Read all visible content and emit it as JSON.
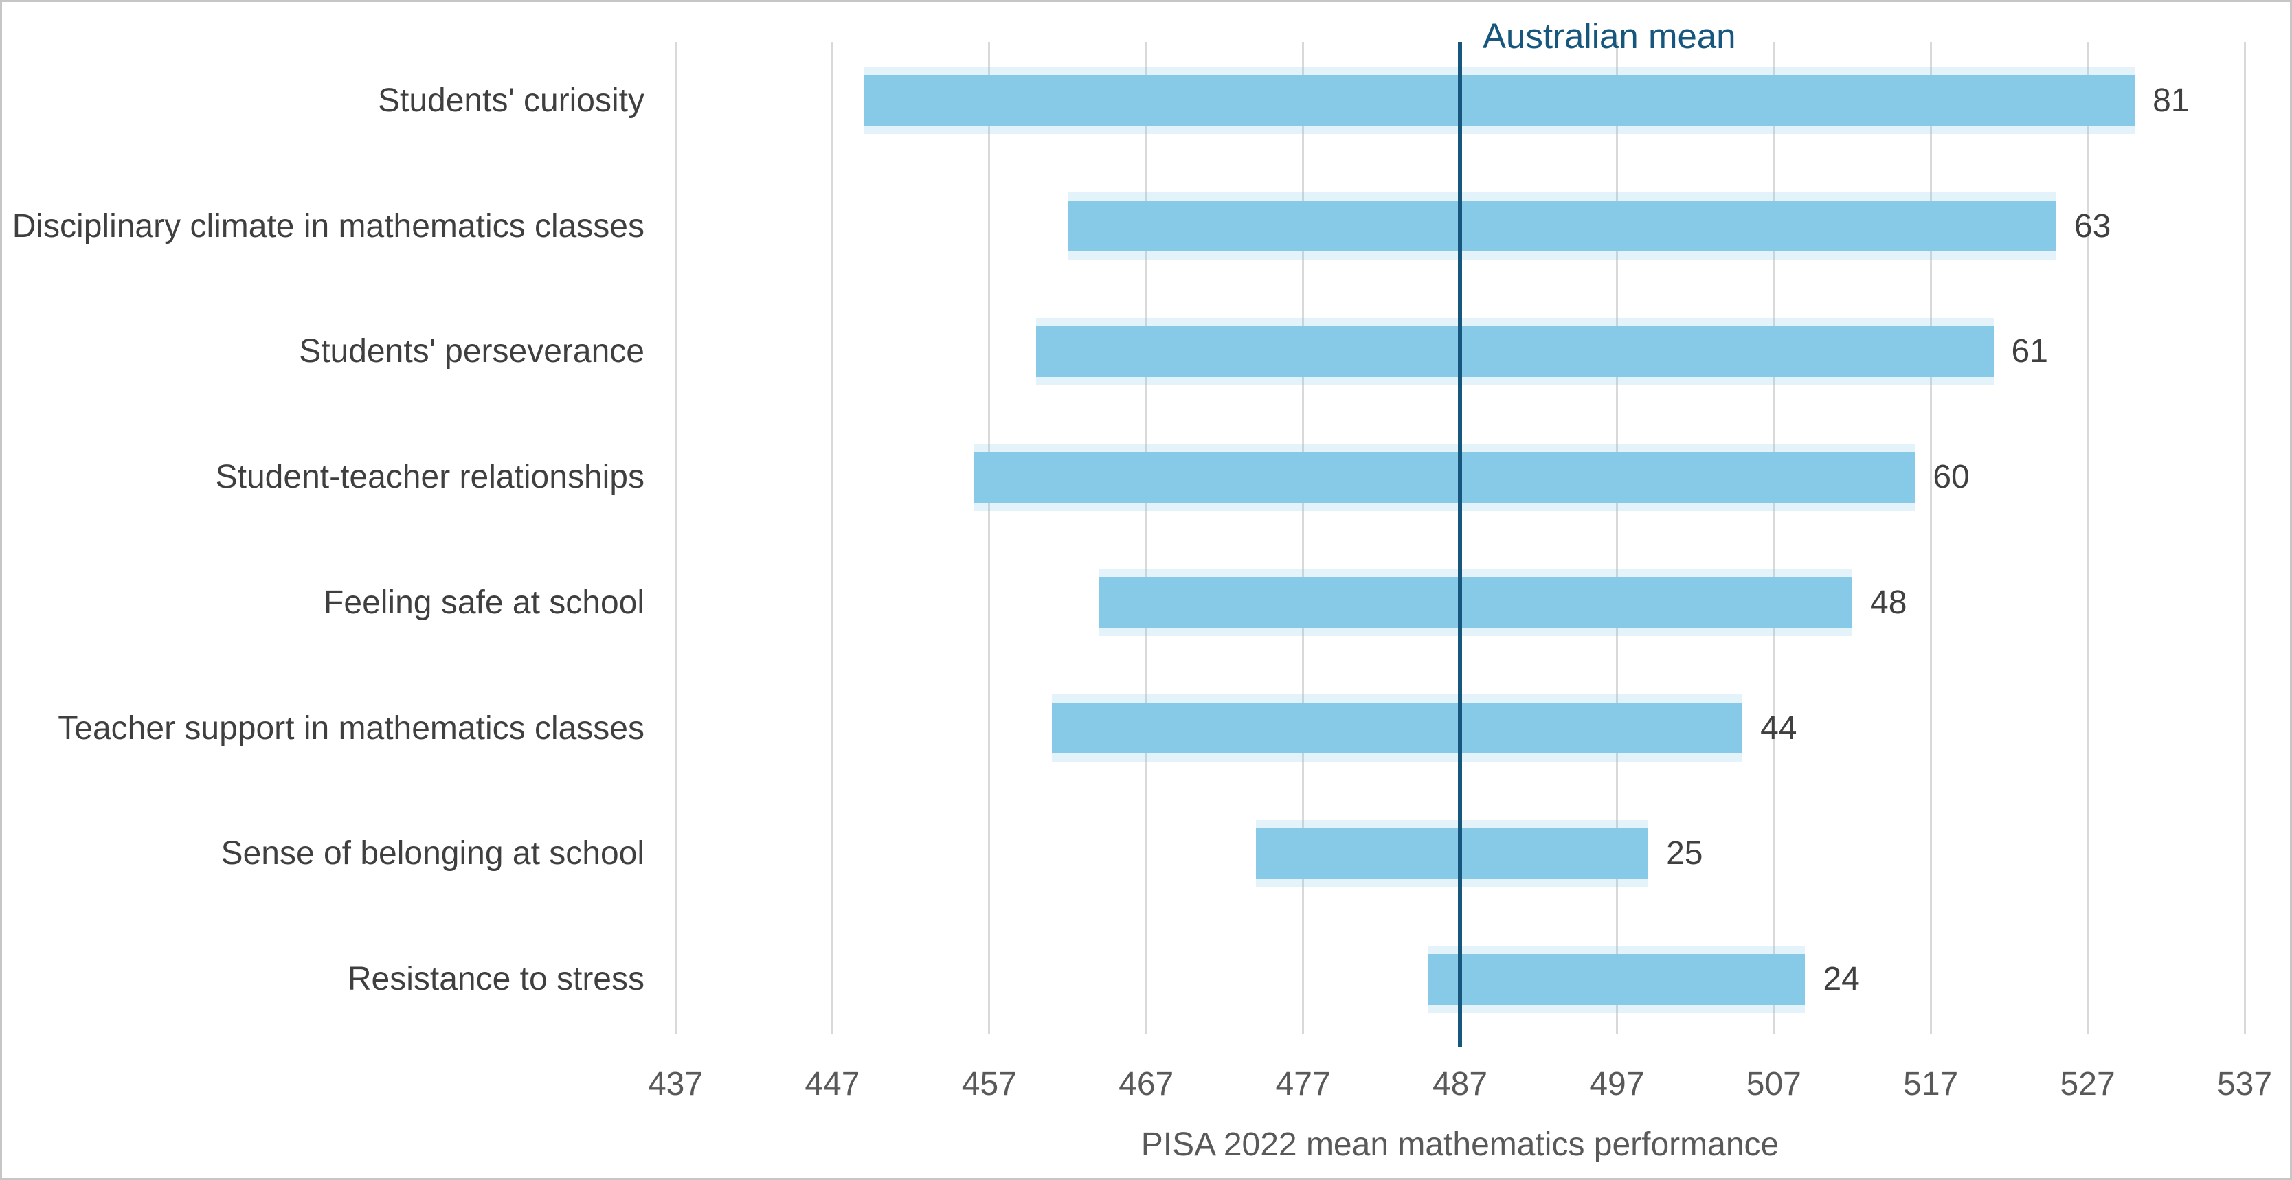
{
  "chart_data": {
    "type": "bar",
    "orientation": "horizontal-range",
    "title": "",
    "xlabel": "PISA 2022 mean mathematics performance",
    "ylabel": "",
    "xlim": [
      437,
      537
    ],
    "x_ticks": [
      "437",
      "447",
      "457",
      "467",
      "477",
      "487",
      "497",
      "507",
      "517",
      "527",
      "537"
    ],
    "x_tick_values": [
      437,
      447,
      457,
      467,
      477,
      487,
      497,
      507,
      517,
      527,
      537
    ],
    "grid": "vertical-only",
    "legend_position": "none",
    "reference_line": {
      "label": "Australian mean",
      "value": 487
    },
    "bars": [
      {
        "category": "Students' curiosity",
        "low": 449,
        "high": 530,
        "label": "81"
      },
      {
        "category": "Disciplinary climate in mathematics classes",
        "low": 462,
        "high": 525,
        "label": "63"
      },
      {
        "category": "Students' perseverance",
        "low": 460,
        "high": 521,
        "label": "61"
      },
      {
        "category": "Student-teacher relationships",
        "low": 456,
        "high": 516,
        "label": "60"
      },
      {
        "category": "Feeling safe at school",
        "low": 464,
        "high": 512,
        "label": "48"
      },
      {
        "category": "Teacher support in mathematics classes",
        "low": 461,
        "high": 505,
        "label": "44"
      },
      {
        "category": "Sense of belonging at school",
        "low": 474,
        "high": 499,
        "label": "25"
      },
      {
        "category": "Resistance to stress",
        "low": 485,
        "high": 509,
        "label": "24"
      }
    ]
  },
  "colors": {
    "bar_fill": "#86cae8",
    "reference_line": "#17577e",
    "reference_label": "#17577e",
    "category_text": "#3f3f3f",
    "value_text": "#404040",
    "tick_text": "#595959",
    "axis_title_text": "#595959",
    "gridline": "#d9d9d9",
    "frame_border": "#c6c6c6",
    "background": "#ffffff"
  }
}
